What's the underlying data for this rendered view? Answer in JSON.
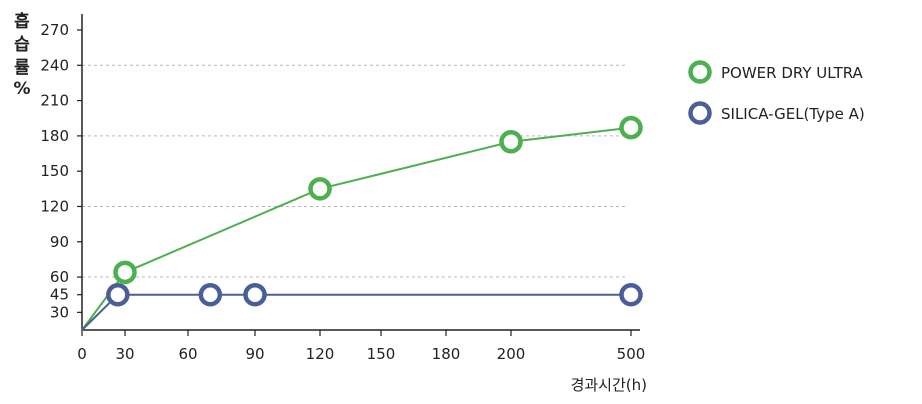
{
  "chart_data": {
    "type": "line",
    "ylabel": "흡습률%",
    "ylabel_chars": [
      "흡",
      "습",
      "률",
      "%"
    ],
    "xlabel": "경과시간(h)",
    "yticks": [
      30,
      45,
      60,
      90,
      120,
      150,
      180,
      210,
      240,
      270
    ],
    "ylim": [
      15,
      285
    ],
    "xticks": [
      "0",
      "30",
      "60",
      "90",
      "120",
      "150",
      "180",
      "200",
      "500"
    ],
    "gridlines_y": [
      60,
      120,
      180,
      240
    ],
    "grid": "dashed horizontal",
    "legend_position": "right",
    "series": [
      {
        "name": "POWER DRY ULTRA",
        "color": "#4caf50",
        "x": [
          0,
          30,
          120,
          200,
          500
        ],
        "values": [
          15,
          64,
          135,
          175,
          187
        ]
      },
      {
        "name": "SILICA-GEL(Type A)",
        "color": "#4a5e9a",
        "x": [
          0,
          25,
          70,
          90,
          500
        ],
        "values": [
          15,
          45,
          45,
          45,
          45
        ]
      }
    ]
  }
}
